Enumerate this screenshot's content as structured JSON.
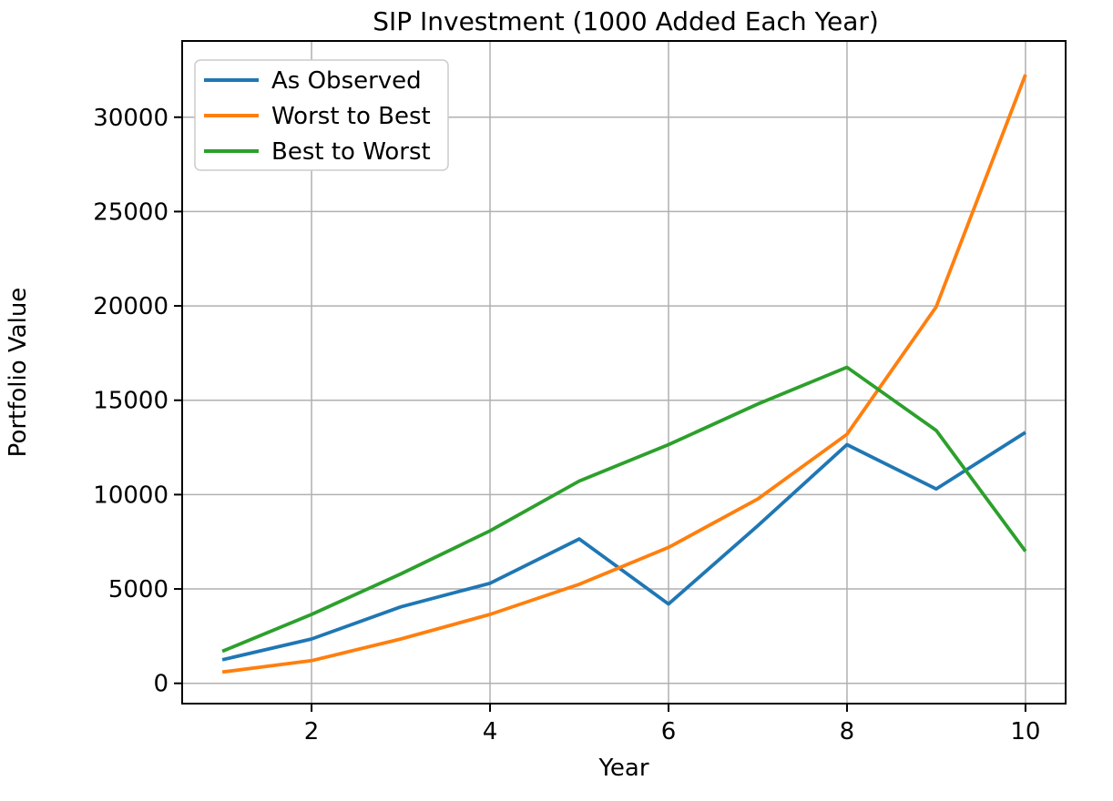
{
  "chart_data": {
    "type": "line",
    "title": "SIP Investment (1000 Added Each Year)",
    "xlabel": "Year",
    "ylabel": "Portfolio Value",
    "x": [
      1,
      2,
      3,
      4,
      5,
      6,
      7,
      8,
      9,
      10
    ],
    "series": [
      {
        "name": "As Observed",
        "color": "#1f77b4",
        "values": [
          1250,
          2350,
          4050,
          5300,
          7650,
          4200,
          8350,
          12650,
          10300,
          13300
        ]
      },
      {
        "name": "Worst to Best",
        "color": "#ff7f0e",
        "values": [
          600,
          1200,
          2350,
          3650,
          5250,
          7200,
          9770,
          13200,
          19950,
          32250
        ]
      },
      {
        "name": "Best to Worst",
        "color": "#2ca02c",
        "values": [
          1700,
          3650,
          5800,
          8080,
          10720,
          12650,
          14800,
          16750,
          13400,
          7000
        ]
      }
    ],
    "xticks": [
      2,
      4,
      6,
      8,
      10
    ],
    "yticks": [
      0,
      5000,
      10000,
      15000,
      20000,
      25000,
      30000
    ],
    "xlim": [
      0.55,
      10.45
    ],
    "ylim": [
      -1075,
      34040
    ],
    "grid": true,
    "legend_position": "upper left"
  },
  "colors": {
    "background": "#ffffff",
    "spine": "#000000",
    "grid": "#b0b0b0",
    "legend_border": "#cccccc",
    "legend_fill": "#ffffff"
  }
}
